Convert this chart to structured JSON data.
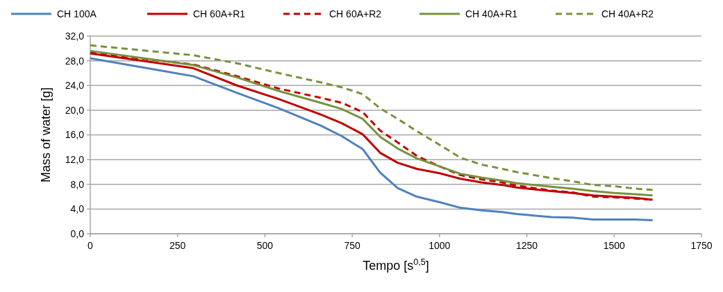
{
  "chart_data": {
    "type": "line",
    "xlabel": "Tempo [s$^{0,5}$]",
    "ylabel": "Mass of water [g]",
    "xlim": [
      0,
      1750
    ],
    "xticks": [
      0,
      250,
      500,
      750,
      1000,
      1250,
      1500,
      1750
    ],
    "ylim": [
      0,
      32
    ],
    "yticks": [
      {
        "value": 0,
        "label": "0,0"
      },
      {
        "value": 4,
        "label": "4,0"
      },
      {
        "value": 8,
        "label": "8,0"
      },
      {
        "value": 12,
        "label": "12,0"
      },
      {
        "value": 16,
        "label": "16,0"
      },
      {
        "value": 20,
        "label": "20,0"
      },
      {
        "value": 24,
        "label": "24,0"
      },
      {
        "value": 28,
        "label": "28,0"
      },
      {
        "value": 32,
        "label": "32,0"
      }
    ],
    "grid": "y",
    "legend": "top",
    "marker": "none",
    "x": [
      0,
      295,
      420,
      540,
      660,
      720,
      780,
      830,
      880,
      935,
      1000,
      1060,
      1120,
      1180,
      1220,
      1320,
      1380,
      1440,
      1500,
      1560,
      1610
    ],
    "series": [
      {
        "name": "CH 100A",
        "color": "#4f81bd",
        "line_style": "solid",
        "values": [
          28.4,
          25.5,
          22.8,
          20.3,
          17.5,
          15.8,
          13.7,
          9.9,
          7.4,
          6.0,
          5.1,
          4.2,
          3.8,
          3.5,
          3.2,
          2.7,
          2.6,
          2.3,
          2.3,
          2.3,
          2.2
        ]
      },
      {
        "name": "CH 60A+R1",
        "color": "#c00000",
        "line_style": "solid",
        "values": [
          29.2,
          26.8,
          24.0,
          21.8,
          19.3,
          17.9,
          16.1,
          13.1,
          11.5,
          10.5,
          9.8,
          8.9,
          8.3,
          7.9,
          7.5,
          6.9,
          6.6,
          6.2,
          6.0,
          5.8,
          5.5
        ]
      },
      {
        "name": "CH 60A+R2",
        "color": "#c00000",
        "line_style": "dashed",
        "values": [
          29.3,
          27.4,
          25.5,
          23.5,
          22.0,
          21.2,
          19.7,
          16.7,
          14.8,
          12.6,
          10.9,
          9.5,
          8.8,
          8.3,
          7.8,
          7.0,
          6.7,
          6.0,
          5.9,
          5.7,
          5.5
        ]
      },
      {
        "name": "CH 40A+R1",
        "color": "#77933c",
        "line_style": "solid",
        "values": [
          29.6,
          27.3,
          25.3,
          23.1,
          21.2,
          20.2,
          18.6,
          15.7,
          13.8,
          12.2,
          10.9,
          9.7,
          9.1,
          8.6,
          8.2,
          7.6,
          7.3,
          6.9,
          6.6,
          6.4,
          6.2
        ]
      },
      {
        "name": "CH 40A+R2",
        "color": "#77933c",
        "line_style": "dashed",
        "values": [
          30.5,
          28.9,
          27.6,
          26.0,
          24.5,
          23.7,
          22.6,
          20.3,
          18.6,
          16.6,
          14.4,
          12.3,
          11.2,
          10.5,
          10.0,
          9.0,
          8.5,
          7.9,
          7.7,
          7.3,
          7.1
        ]
      }
    ]
  }
}
